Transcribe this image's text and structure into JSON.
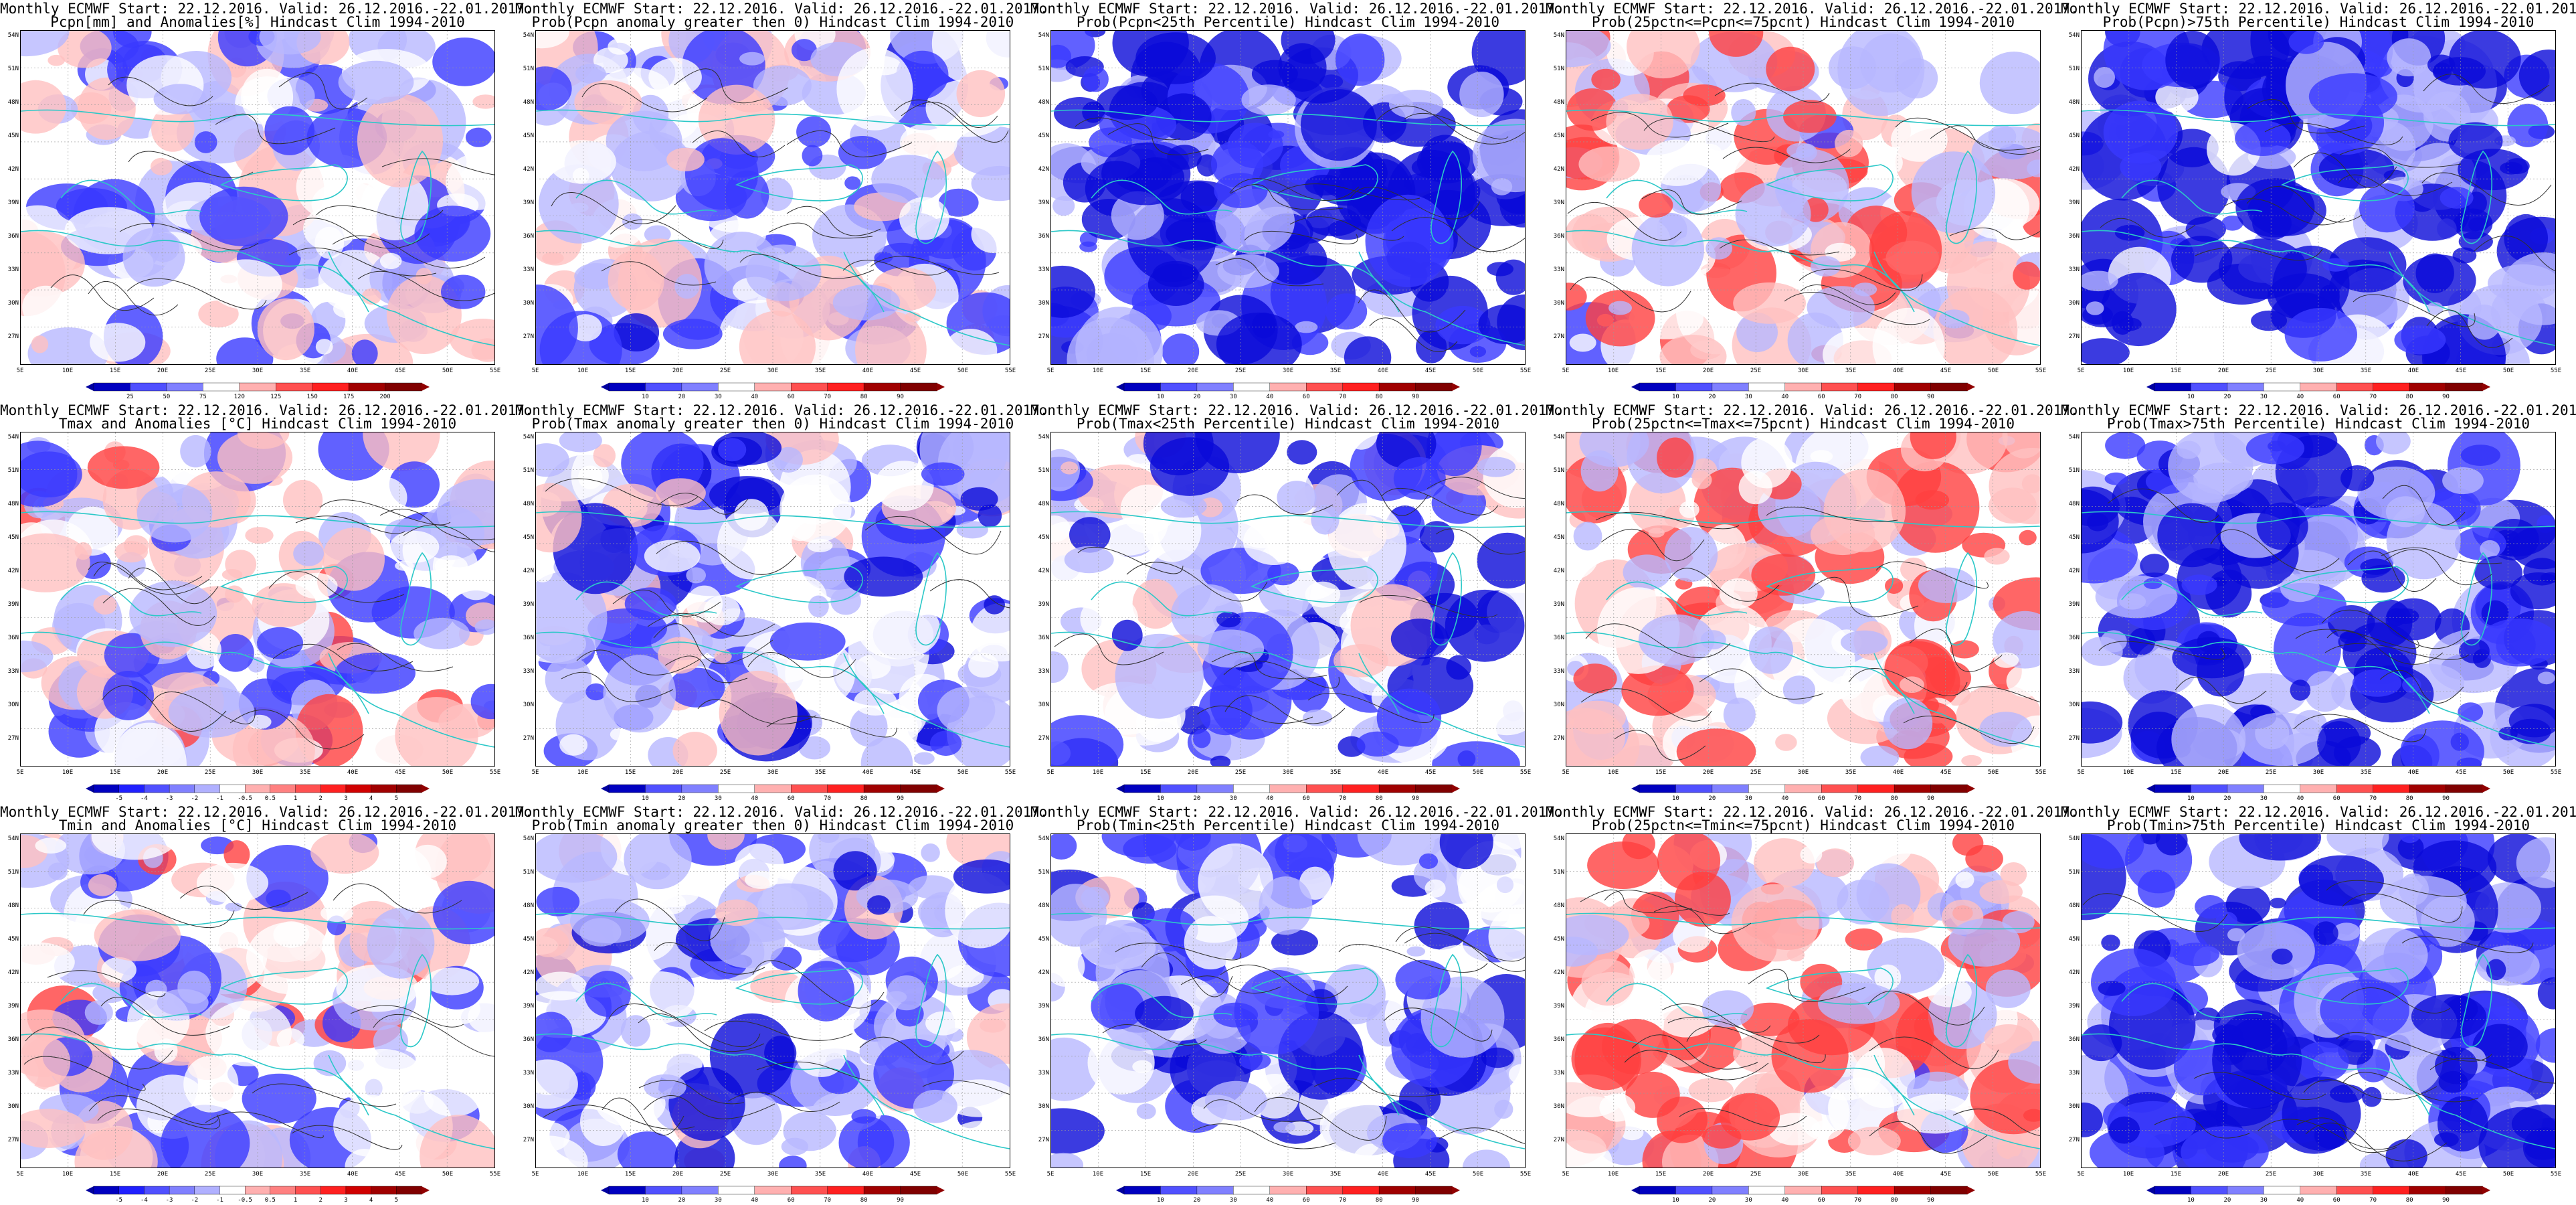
{
  "header": {
    "model_line": "Monthly ECMWF Start: 22.12.2016. Valid: 26.12.2016.-22.01.2017."
  },
  "map_axes": {
    "lat_labels": [
      "54N",
      "51N",
      "48N",
      "45N",
      "42N",
      "39N",
      "36N",
      "33N",
      "30N",
      "27N"
    ],
    "lon_labels": [
      "5E",
      "10E",
      "15E",
      "20E",
      "25E",
      "30E",
      "35E",
      "40E",
      "45E",
      "50E",
      "55E"
    ]
  },
  "colors": {
    "deep_blue": "#0a0ad8",
    "blue": "#3a3aff",
    "light_blue": "#b8b8ff",
    "white": "#ffffff",
    "pink": "#ffc0c0",
    "red": "#ff4040",
    "dark_red": "#c80000",
    "coast": "#2cc8c8",
    "contour": "#303030"
  },
  "rows": [
    {
      "variable": "Pcpn",
      "panels": [
        {
          "name": "pcpn-anomaly",
          "title": "Pcpn[mm] and Anomalies[%] Hindcast Clim 1994-2010",
          "colorbar": [
            "25",
            "50",
            "75",
            "120",
            "125",
            "150",
            "175",
            "200"
          ],
          "bias": 0.15
        },
        {
          "name": "pcpn-prob-above-zero",
          "title": "Prob(Pcpn anomaly greater then 0) Hindcast Clim 1994-2010",
          "colorbar": [
            "10",
            "20",
            "30",
            "40",
            "60",
            "70",
            "80",
            "90"
          ],
          "bias": 0.2
        },
        {
          "name": "pcpn-prob-below-p25",
          "title": "Prob(Pcpn<25th Percentile) Hindcast Clim 1994-2010",
          "colorbar": [
            "10",
            "20",
            "30",
            "40",
            "60",
            "70",
            "80",
            "90"
          ],
          "bias": 0.85
        },
        {
          "name": "pcpn-prob-p25-p75",
          "title": "Prob(25pctn<=Pcpn<=75pcnt) Hindcast Clim 1994-2010",
          "colorbar": [
            "10",
            "20",
            "30",
            "40",
            "60",
            "70",
            "80",
            "90"
          ],
          "bias": -0.1
        },
        {
          "name": "pcpn-prob-above-p75",
          "title": "Prob(Pcpn)>75th Percentile) Hindcast Clim 1994-2010",
          "colorbar": [
            "10",
            "20",
            "30",
            "40",
            "60",
            "70",
            "80",
            "90"
          ],
          "bias": 0.75
        }
      ]
    },
    {
      "variable": "Tmax",
      "panels": [
        {
          "name": "tmax-anomaly",
          "title": "Tmax and Anomalies [°C] Hindcast Clim 1994-2010",
          "colorbar": [
            "-5",
            "-4",
            "-3",
            "-2",
            "-1",
            "-0.5",
            "0.5",
            "1",
            "2",
            "3",
            "4",
            "5"
          ],
          "bias": 0.1
        },
        {
          "name": "tmax-prob-above-zero",
          "title": "Prob(Tmax anomaly greater then 0) Hindcast Clim 1994-2010",
          "colorbar": [
            "10",
            "20",
            "30",
            "40",
            "60",
            "70",
            "80",
            "90"
          ],
          "bias": 0.3
        },
        {
          "name": "tmax-prob-below-p25",
          "title": "Prob(Tmax<25th Percentile) Hindcast Clim 1994-2010",
          "colorbar": [
            "10",
            "20",
            "30",
            "40",
            "60",
            "70",
            "80",
            "90"
          ],
          "bias": 0.35
        },
        {
          "name": "tmax-prob-p25-p75",
          "title": "Prob(25pctn<=Tmax<=75pcnt) Hindcast Clim 1994-2010",
          "colorbar": [
            "10",
            "20",
            "30",
            "40",
            "60",
            "70",
            "80",
            "90"
          ],
          "bias": -0.15
        },
        {
          "name": "tmax-prob-above-p75",
          "title": "Prob(Tmax>75th Percentile) Hindcast Clim 1994-2010",
          "colorbar": [
            "10",
            "20",
            "30",
            "40",
            "60",
            "70",
            "80",
            "90"
          ],
          "bias": 0.8
        }
      ]
    },
    {
      "variable": "Tmin",
      "panels": [
        {
          "name": "tmin-anomaly",
          "title": "Tmin and Anomalies [°C] Hindcast Clim 1994-2010",
          "colorbar": [
            "-5",
            "-4",
            "-3",
            "-2",
            "-1",
            "-0.5",
            "0.5",
            "1",
            "2",
            "3",
            "4",
            "5"
          ],
          "bias": 0.05
        },
        {
          "name": "tmin-prob-above-zero",
          "title": "Prob(Tmin anomaly greater then 0) Hindcast Clim 1994-2010",
          "colorbar": [
            "10",
            "20",
            "30",
            "40",
            "60",
            "70",
            "80",
            "90"
          ],
          "bias": 0.3
        },
        {
          "name": "tmin-prob-below-p25",
          "title": "Prob(Tmin<25th Percentile) Hindcast Clim 1994-2010",
          "colorbar": [
            "10",
            "20",
            "30",
            "40",
            "60",
            "70",
            "80",
            "90"
          ],
          "bias": 0.45
        },
        {
          "name": "tmin-prob-p25-p75",
          "title": "Prob(25pctn<=Tmin<=75pcnt) Hindcast Clim 1994-2010",
          "colorbar": [
            "10",
            "20",
            "30",
            "40",
            "60",
            "70",
            "80",
            "90"
          ],
          "bias": -0.1
        },
        {
          "name": "tmin-prob-above-p75",
          "title": "Prob(Tmin>75th Percentile) Hindcast Clim 1994-2010",
          "colorbar": [
            "10",
            "20",
            "30",
            "40",
            "60",
            "70",
            "80",
            "90"
          ],
          "bias": 0.8
        }
      ]
    }
  ]
}
